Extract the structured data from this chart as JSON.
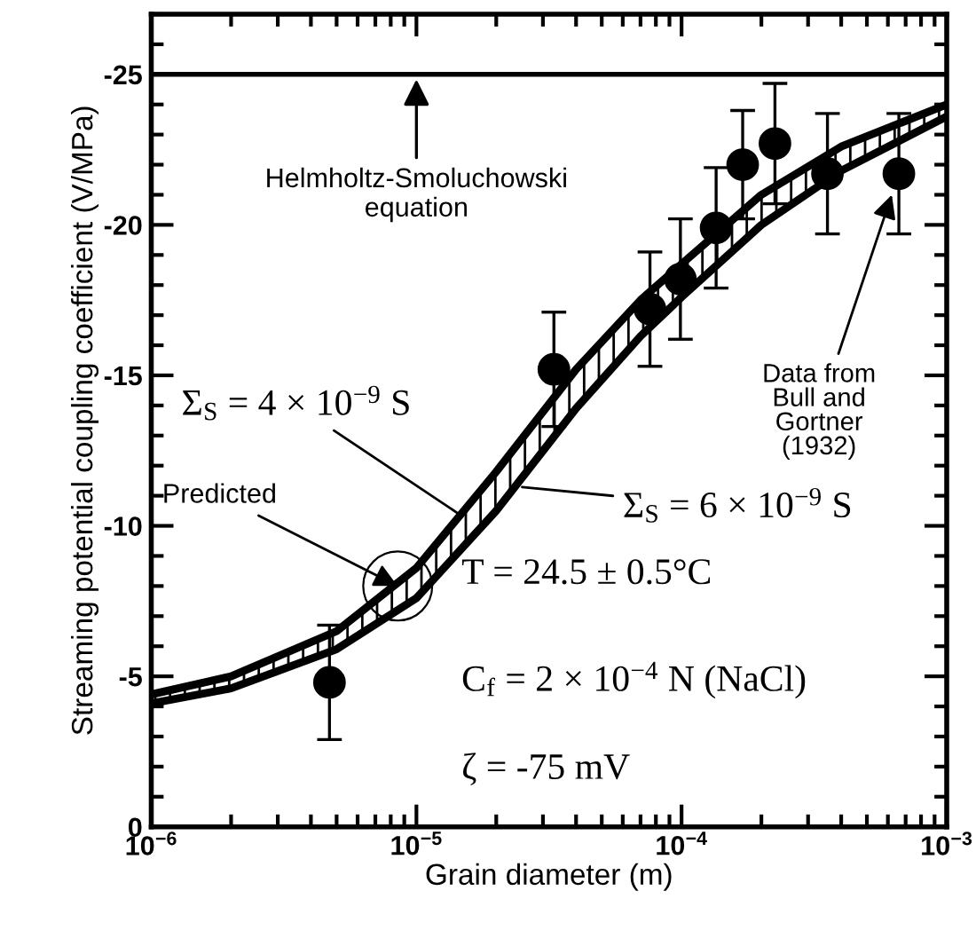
{
  "chart_data": {
    "type": "line",
    "xlabel": "Grain diameter (m)",
    "ylabel": "Streaming potential coupling coefficient (V/MPa)",
    "log": "x",
    "xlim": [
      1e-06,
      0.001
    ],
    "xticks": [
      {
        "value": 1e-06,
        "label": "10$^{−6}$"
      },
      {
        "value": 1e-05,
        "label": "10$^{−5}$"
      },
      {
        "value": 0.0001,
        "label": "10$^{−4}$"
      },
      {
        "value": 0.001,
        "label": "10$^{−3}$"
      }
    ],
    "ylim": [
      0,
      -27
    ],
    "yticks": [
      0,
      -5,
      -10,
      -15,
      -20,
      -25
    ],
    "grid": false,
    "legend": "right",
    "series": [
      {
        "name": "Σ$_{S}$ = 4 × 10$^{−9}$ S",
        "color": "#000000",
        "line_style": "solid",
        "marker": "none",
        "x": [
          1e-06,
          2e-06,
          5e-06,
          1e-05,
          2e-05,
          4e-05,
          7e-05,
          0.0001,
          0.0002,
          0.0004,
          0.001
        ],
        "values": [
          -4.4,
          -5.0,
          -6.5,
          -8.6,
          -11.8,
          -15.2,
          -17.5,
          -18.7,
          -21.0,
          -22.6,
          -24.0
        ]
      },
      {
        "name": "Σ$_{S}$ = 6 × 10$^{−9}$ S",
        "color": "#000000",
        "line_style": "solid",
        "marker": "none",
        "x": [
          1e-06,
          2e-06,
          5e-06,
          1e-05,
          2e-05,
          4e-05,
          7e-05,
          0.0001,
          0.0002,
          0.0004,
          0.001
        ],
        "values": [
          -4.1,
          -4.6,
          -5.9,
          -7.6,
          -10.5,
          -13.9,
          -16.3,
          -17.6,
          -20.0,
          -21.8,
          -23.6
        ]
      },
      {
        "name": "Data from\nBull and\nGortner\n(1932)",
        "type": "scatter",
        "color": "#000000",
        "marker": "circle",
        "x": [
          4.7e-06,
          3.3e-05,
          7.6e-05,
          9.9e-05,
          0.000135,
          0.00017,
          0.000225,
          0.000355,
          0.00066
        ],
        "values": [
          -4.8,
          -15.2,
          -17.2,
          -18.2,
          -19.9,
          -22.0,
          -22.7,
          -21.7,
          -21.7
        ],
        "errors": [
          1.9,
          1.9,
          1.9,
          2.0,
          2.0,
          1.8,
          2.0,
          2.0,
          2.0
        ]
      }
    ],
    "ref_lines": [
      {
        "axis": "y",
        "value": -25,
        "label": "Helmholtz-Smoluchowski\nequation",
        "color": "#000000",
        "line_style": "solid"
      }
    ],
    "annotations": [
      {
        "text": "Predicted",
        "x": 8.5e-06,
        "y": -8.0
      },
      "T = 24.5 ± 0.5°C",
      "C$_{f}$ = 2 × 10$^{−4}$ N (NaCl)",
      "ζ = -75 mV"
    ]
  }
}
